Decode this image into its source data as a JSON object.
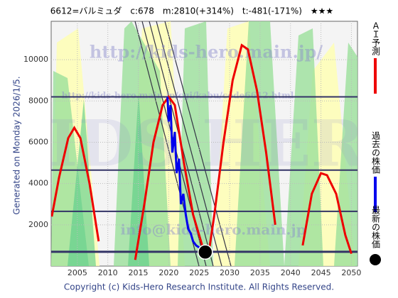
{
  "chart_data": {
    "type": "line",
    "title": "6612=バルミュダ　c:678　m:2810(+314%)　t:-481(-171%)　★★★",
    "side_label": "Generated on Monday 2026/1/5.",
    "footer": "Copyright (c) Kids-Hero Research Institute. All Rights Reserved.",
    "watermarks": [
      "http://kids-hero.main.jp/",
      "http://kids-hero.main.jp/cgi/kabu/code6612.html",
      "KIDS HERO",
      "info@kids-hero.main.jp"
    ],
    "xlim": [
      2000.7,
      2051
    ],
    "ylim": [
      0,
      11860
    ],
    "xticks": [
      2005,
      2010,
      2015,
      2020,
      2025,
      2030,
      2035,
      2040,
      2045,
      2050
    ],
    "yticks": [
      2000,
      4000,
      6000,
      8000,
      10000
    ],
    "levels": [
      8200,
      4650,
      2650,
      690
    ],
    "series": [
      {
        "name": "ＡＩ予測",
        "color": "#ee0000",
        "x": [
          2000.8,
          2002,
          2003.5,
          2004.5,
          2005.5,
          2007,
          2008.5,
          2009.2,
          2014.5,
          2016,
          2017.5,
          2019,
          2020,
          2021,
          2022.5,
          2024,
          2025.5,
          2026.5,
          2027.5,
          2029,
          2030.5,
          2032,
          2033,
          2034.5,
          2036,
          2037.5,
          2038.3,
          2042,
          2043.5,
          2045,
          2046,
          2047.5,
          2049,
          2050
        ],
        "values": [
          2400,
          4300,
          6200,
          6700,
          6200,
          4000,
          1200,
          null,
          300,
          3000,
          6000,
          7800,
          8200,
          7800,
          5000,
          2500,
          1000,
          500,
          2500,
          6000,
          9000,
          10700,
          10500,
          8500,
          5500,
          2000,
          null,
          1000,
          3500,
          4500,
          4400,
          3500,
          1500,
          600
        ]
      },
      {
        "name": "過去の株価",
        "color": "#0000ee",
        "x": [
          2019.8,
          2020,
          2020.3,
          2020.6,
          2021,
          2021.3,
          2021.7,
          2022,
          2022.4,
          2022.8,
          2023.2,
          2023.6,
          2024,
          2024.5,
          2025,
          2025.5
        ],
        "values": [
          8200,
          7000,
          7800,
          5500,
          6500,
          4500,
          5200,
          3000,
          3500,
          2500,
          1800,
          1600,
          1200,
          1000,
          900,
          700
        ]
      },
      {
        "name": "最新の株価",
        "color": "#000000",
        "x": [
          2026
        ],
        "values": [
          678
        ]
      }
    ]
  }
}
